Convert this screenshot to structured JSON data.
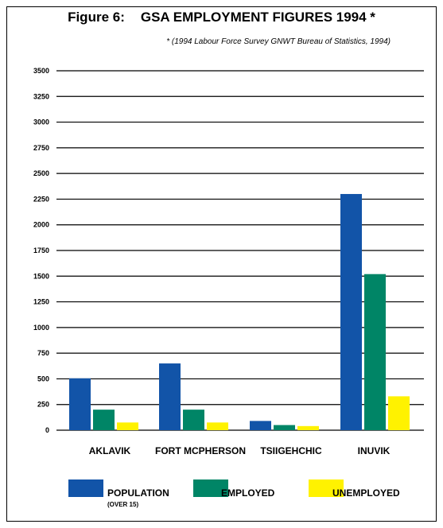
{
  "header": {
    "figure_label": "Figure 6:",
    "title": "GSA  EMPLOYMENT FIGURES 1994 *",
    "subtitle": "* (1994 Labour Force Survey GNWT Bureau of Statistics, 1994)"
  },
  "chart_data": {
    "type": "bar",
    "title": "GSA  EMPLOYMENT FIGURES 1994 *",
    "categories": [
      "AKLAVIK",
      "FORT MCPHERSON",
      "TSIIGEHCHIC",
      "INUVIK"
    ],
    "series": [
      {
        "name": "POPULATION",
        "color": "#1254a8",
        "values": [
          505,
          650,
          90,
          2300
        ]
      },
      {
        "name": "EMPLOYED",
        "color": "#008566",
        "values": [
          200,
          200,
          50,
          1520
        ]
      },
      {
        "name": "UNEMPLOYED",
        "color": "#fff200",
        "values": [
          75,
          75,
          40,
          330
        ]
      }
    ],
    "yticks": [
      "0",
      "250",
      "500",
      "750",
      "1000",
      "1250",
      "1500",
      "1750",
      "2000",
      "2250",
      "2500",
      "2750",
      "3000",
      "3250",
      "3500"
    ],
    "ylim": [
      0,
      3500
    ],
    "grid": true,
    "legend_position": "bottom"
  },
  "legend": {
    "items": [
      {
        "label": "POPULATION",
        "note": "(OVER 15)",
        "color": "#1254a8"
      },
      {
        "label": "EMPLOYED",
        "note": "",
        "color": "#008566"
      },
      {
        "label": "UNEMPLOYED",
        "note": "",
        "color": "#fff200"
      }
    ]
  }
}
